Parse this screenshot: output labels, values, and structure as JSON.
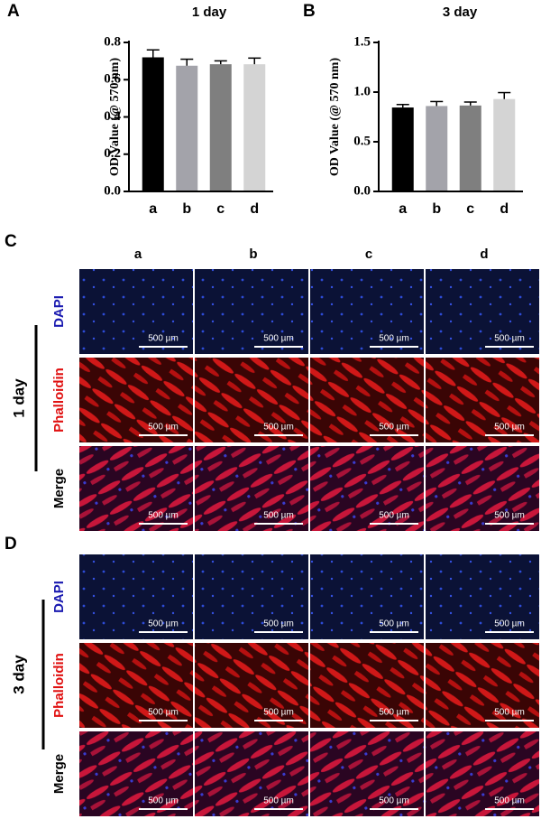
{
  "chart_data": [
    {
      "type": "bar",
      "panel": "A",
      "title": "1 day",
      "ylabel": "OD Value (@ 570 nm)",
      "categories": [
        "a",
        "b",
        "c",
        "d"
      ],
      "values": [
        0.72,
        0.675,
        0.683,
        0.683
      ],
      "errors": [
        0.04,
        0.035,
        0.018,
        0.033
      ],
      "colors": [
        "#000000",
        "#a3a3aa",
        "#7f7f7f",
        "#d4d4d4"
      ],
      "ylim": [
        0,
        0.8
      ],
      "yticks": [
        {
          "value": 0,
          "label": "0.0"
        },
        0.2,
        0.4,
        0.6,
        0.8
      ]
    },
    {
      "type": "bar",
      "panel": "B",
      "title": "3 day",
      "ylabel": "OD Value (@ 570 nm)",
      "categories": [
        "a",
        "b",
        "c",
        "d"
      ],
      "values": [
        0.845,
        0.86,
        0.865,
        0.93
      ],
      "errors": [
        0.03,
        0.045,
        0.035,
        0.065
      ],
      "colors": [
        "#000000",
        "#a3a3aa",
        "#7f7f7f",
        "#d4d4d4"
      ],
      "ylim": [
        0,
        1.5
      ],
      "yticks": [
        {
          "value": 0,
          "label": "0.0"
        },
        0.5,
        {
          "value": 1,
          "label": "1.0"
        },
        1.5
      ]
    }
  ],
  "images": {
    "columns": [
      "a",
      "b",
      "c",
      "d"
    ],
    "scale_bar": "500 µm",
    "groups": [
      {
        "panel": "C",
        "time": "1 day",
        "rows": [
          "DAPI",
          "Phalloidin",
          "Merge"
        ]
      },
      {
        "panel": "D",
        "time": "3 day",
        "rows": [
          "DAPI",
          "Phalloidin",
          "Merge"
        ]
      }
    ]
  }
}
